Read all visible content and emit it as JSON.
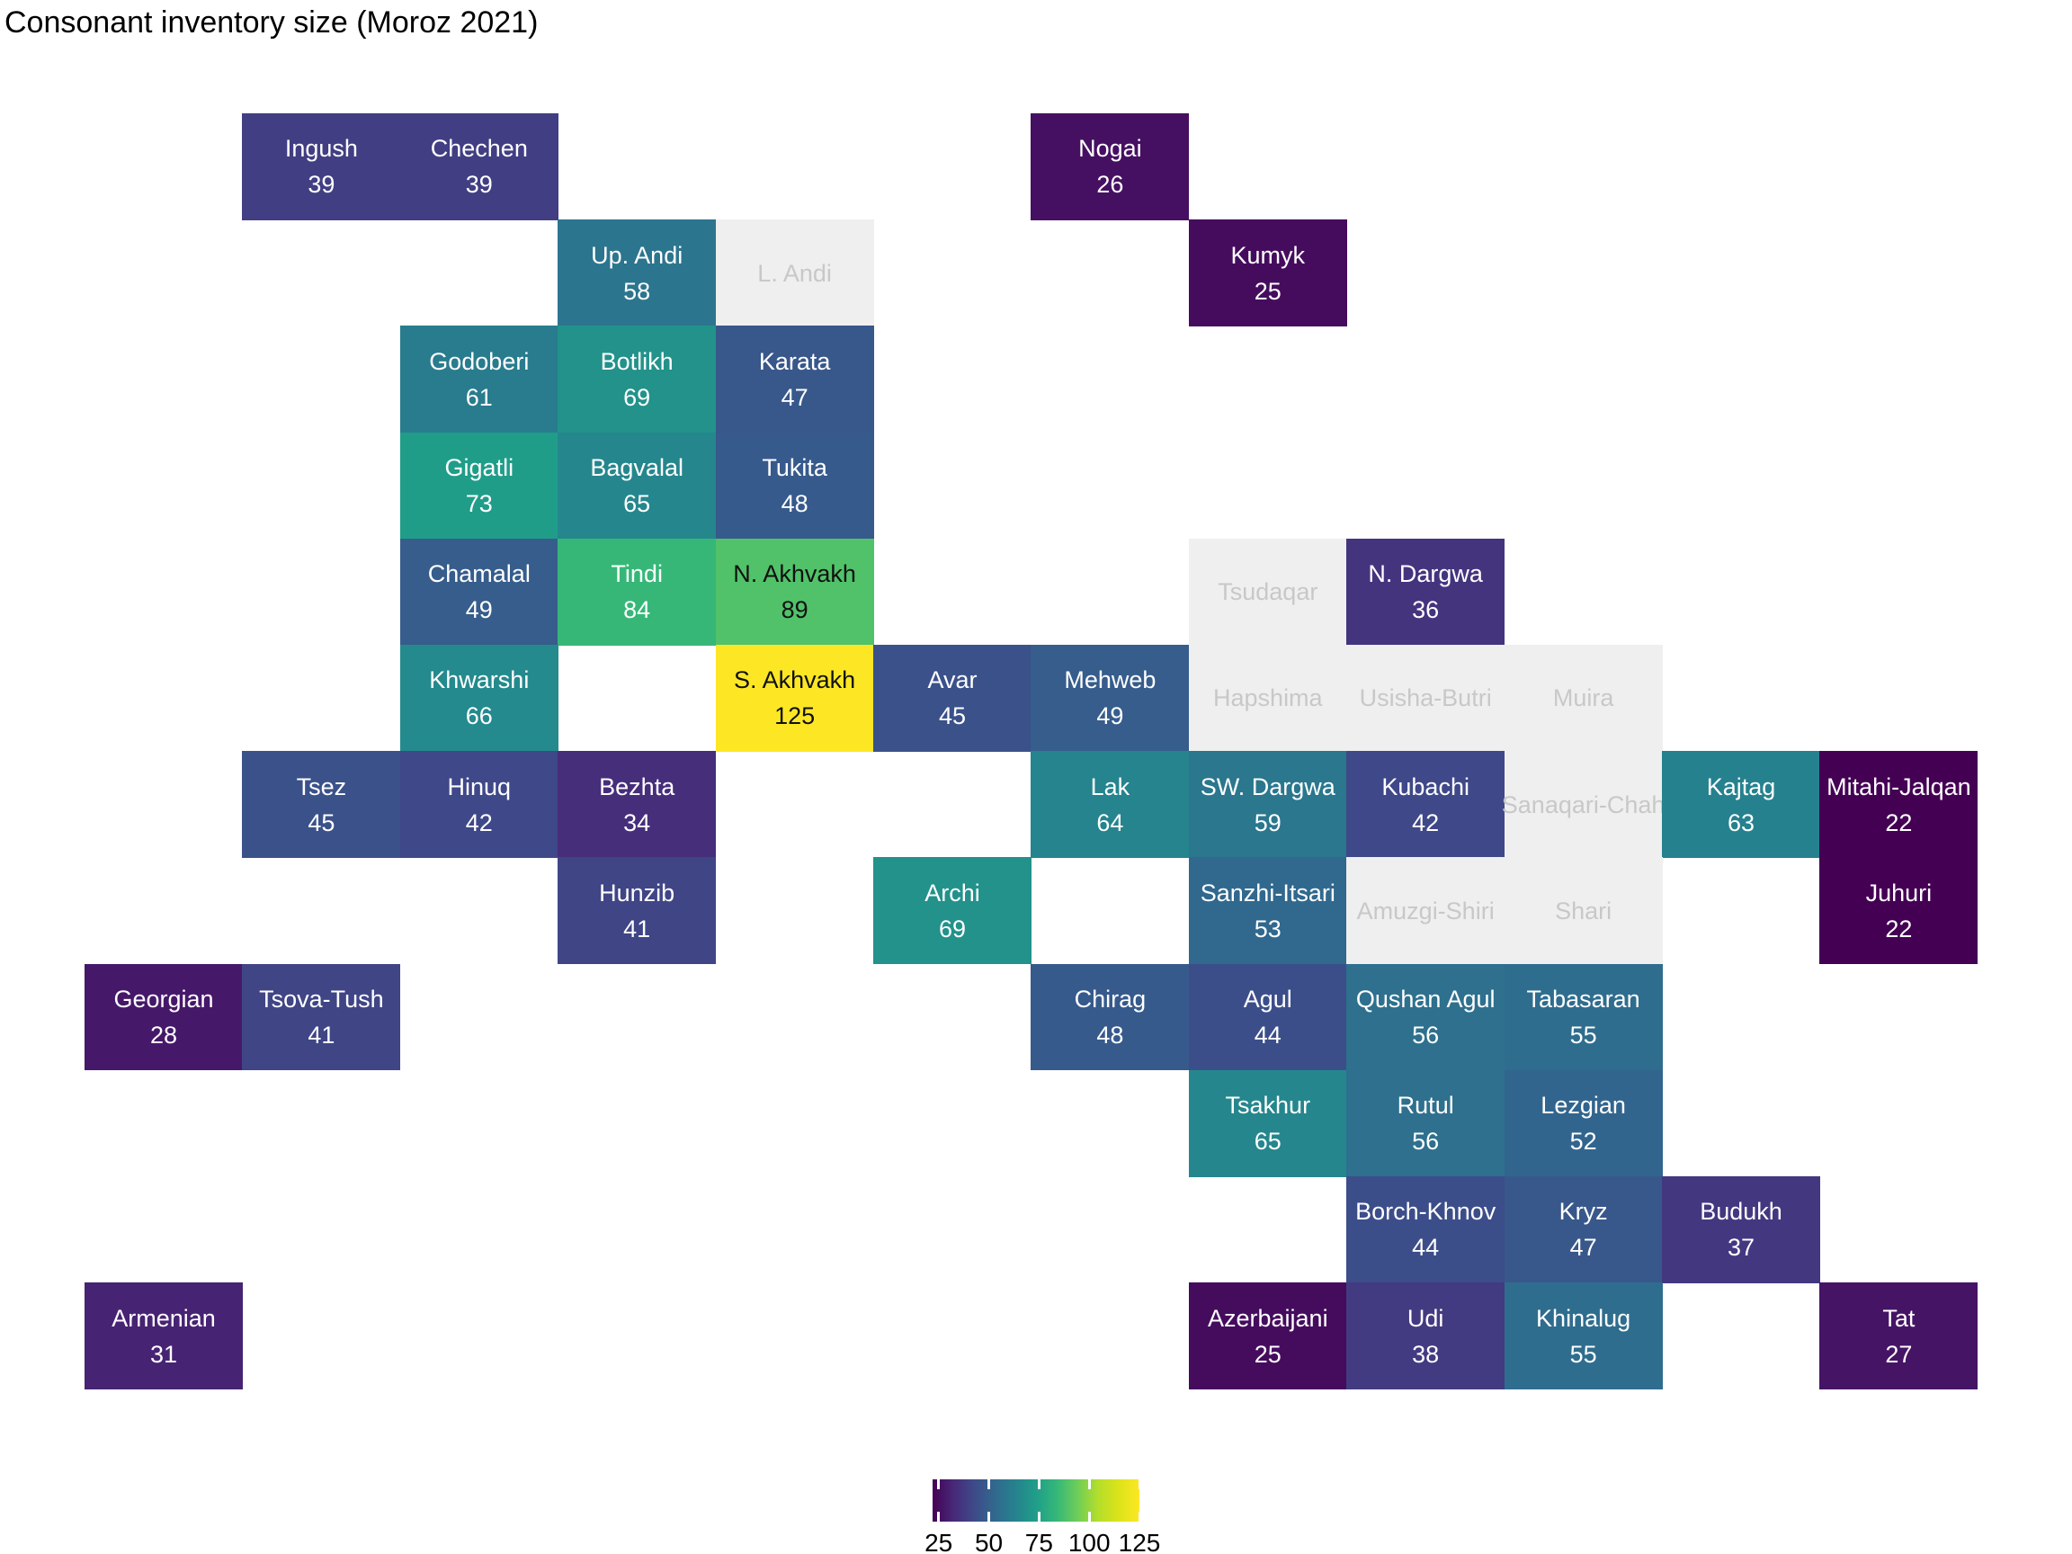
{
  "title": "Consonant inventory size (Moroz 2021)",
  "chart_data": {
    "type": "heatmap",
    "title": "Consonant inventory size (Moroz 2021)",
    "value_label": "consonant inventory size",
    "grid": {
      "rows": 12,
      "cols": 12
    },
    "domain": [
      22,
      125
    ],
    "legend": {
      "ticks": [
        25,
        50,
        75,
        100,
        125
      ],
      "position": "bottom"
    },
    "color_scale": {
      "name": "viridis",
      "stops": [
        [
          0.0,
          "#440154"
        ],
        [
          0.1,
          "#482878"
        ],
        [
          0.2,
          "#3e4a89"
        ],
        [
          0.3,
          "#31688e"
        ],
        [
          0.4,
          "#26828e"
        ],
        [
          0.5,
          "#1f9e89"
        ],
        [
          0.6,
          "#35b779"
        ],
        [
          0.7,
          "#6dcd59"
        ],
        [
          0.8,
          "#b4de2c"
        ],
        [
          0.9,
          "#dce319"
        ],
        [
          1.0,
          "#fde725"
        ]
      ]
    },
    "no_data_color": "#efefef",
    "no_data_text_color": "#c8c8c8",
    "dark_text_color": "#111111",
    "light_text_color": "#ffffff",
    "dark_text_threshold": 87,
    "tiles": [
      {
        "name": "Ingush",
        "value": 39,
        "row": 0,
        "col": 1
      },
      {
        "name": "Chechen",
        "value": 39,
        "row": 0,
        "col": 2
      },
      {
        "name": "Nogai",
        "value": 26,
        "row": 0,
        "col": 6
      },
      {
        "name": "Up. Andi",
        "value": 58,
        "row": 1,
        "col": 3
      },
      {
        "name": "L. Andi",
        "value": null,
        "row": 1,
        "col": 4
      },
      {
        "name": "Kumyk",
        "value": 25,
        "row": 1,
        "col": 7
      },
      {
        "name": "Godoberi",
        "value": 61,
        "row": 2,
        "col": 2
      },
      {
        "name": "Botlikh",
        "value": 69,
        "row": 2,
        "col": 3
      },
      {
        "name": "Karata",
        "value": 47,
        "row": 2,
        "col": 4
      },
      {
        "name": "Gigatli",
        "value": 73,
        "row": 3,
        "col": 2
      },
      {
        "name": "Bagvalal",
        "value": 65,
        "row": 3,
        "col": 3
      },
      {
        "name": "Tukita",
        "value": 48,
        "row": 3,
        "col": 4
      },
      {
        "name": "Chamalal",
        "value": 49,
        "row": 4,
        "col": 2
      },
      {
        "name": "Tindi",
        "value": 84,
        "row": 4,
        "col": 3
      },
      {
        "name": "N. Akhvakh",
        "value": 89,
        "row": 4,
        "col": 4
      },
      {
        "name": "Tsudaqar",
        "value": null,
        "row": 4,
        "col": 7
      },
      {
        "name": "N. Dargwa",
        "value": 36,
        "row": 4,
        "col": 8
      },
      {
        "name": "Khwarshi",
        "value": 66,
        "row": 5,
        "col": 2
      },
      {
        "name": "S. Akhvakh",
        "value": 125,
        "row": 5,
        "col": 4
      },
      {
        "name": "Avar",
        "value": 45,
        "row": 5,
        "col": 5
      },
      {
        "name": "Mehweb",
        "value": 49,
        "row": 5,
        "col": 6
      },
      {
        "name": "Hapshima",
        "value": null,
        "row": 5,
        "col": 7
      },
      {
        "name": "Usisha-Butri",
        "value": null,
        "row": 5,
        "col": 8
      },
      {
        "name": "Muira",
        "value": null,
        "row": 5,
        "col": 9
      },
      {
        "name": "Tsez",
        "value": 45,
        "row": 6,
        "col": 1
      },
      {
        "name": "Hinuq",
        "value": 42,
        "row": 6,
        "col": 2
      },
      {
        "name": "Bezhta",
        "value": 34,
        "row": 6,
        "col": 3
      },
      {
        "name": "Lak",
        "value": 64,
        "row": 6,
        "col": 6
      },
      {
        "name": "SW. Dargwa",
        "value": 59,
        "row": 6,
        "col": 7
      },
      {
        "name": "Kubachi",
        "value": 42,
        "row": 6,
        "col": 8
      },
      {
        "name": "Sanaqari-Chah",
        "value": null,
        "row": 6,
        "col": 9
      },
      {
        "name": "Kajtag",
        "value": 63,
        "row": 6,
        "col": 10
      },
      {
        "name": "Mitahi-Jalqan",
        "value": 22,
        "row": 6,
        "col": 11
      },
      {
        "name": "Hunzib",
        "value": 41,
        "row": 7,
        "col": 3
      },
      {
        "name": "Archi",
        "value": 69,
        "row": 7,
        "col": 5
      },
      {
        "name": "Sanzhi-Itsari",
        "value": 53,
        "row": 7,
        "col": 7
      },
      {
        "name": "Amuzgi-Shiri",
        "value": null,
        "row": 7,
        "col": 8
      },
      {
        "name": "Shari",
        "value": null,
        "row": 7,
        "col": 9
      },
      {
        "name": "Juhuri",
        "value": 22,
        "row": 7,
        "col": 11
      },
      {
        "name": "Georgian",
        "value": 28,
        "row": 8,
        "col": 0
      },
      {
        "name": "Tsova-Tush",
        "value": 41,
        "row": 8,
        "col": 1
      },
      {
        "name": "Chirag",
        "value": 48,
        "row": 8,
        "col": 6
      },
      {
        "name": "Agul",
        "value": 44,
        "row": 8,
        "col": 7
      },
      {
        "name": "Qushan Agul",
        "value": 56,
        "row": 8,
        "col": 8
      },
      {
        "name": "Tabasaran",
        "value": 55,
        "row": 8,
        "col": 9
      },
      {
        "name": "Tsakhur",
        "value": 65,
        "row": 9,
        "col": 7
      },
      {
        "name": "Rutul",
        "value": 56,
        "row": 9,
        "col": 8
      },
      {
        "name": "Lezgian",
        "value": 52,
        "row": 9,
        "col": 9
      },
      {
        "name": "Borch-Khnov",
        "value": 44,
        "row": 10,
        "col": 8
      },
      {
        "name": "Kryz",
        "value": 47,
        "row": 10,
        "col": 9
      },
      {
        "name": "Budukh",
        "value": 37,
        "row": 10,
        "col": 10
      },
      {
        "name": "Armenian",
        "value": 31,
        "row": 11,
        "col": 0
      },
      {
        "name": "Azerbaijani",
        "value": 25,
        "row": 11,
        "col": 7
      },
      {
        "name": "Udi",
        "value": 38,
        "row": 11,
        "col": 8
      },
      {
        "name": "Khinalug",
        "value": 55,
        "row": 11,
        "col": 9
      },
      {
        "name": "Tat",
        "value": 27,
        "row": 11,
        "col": 11
      }
    ]
  }
}
